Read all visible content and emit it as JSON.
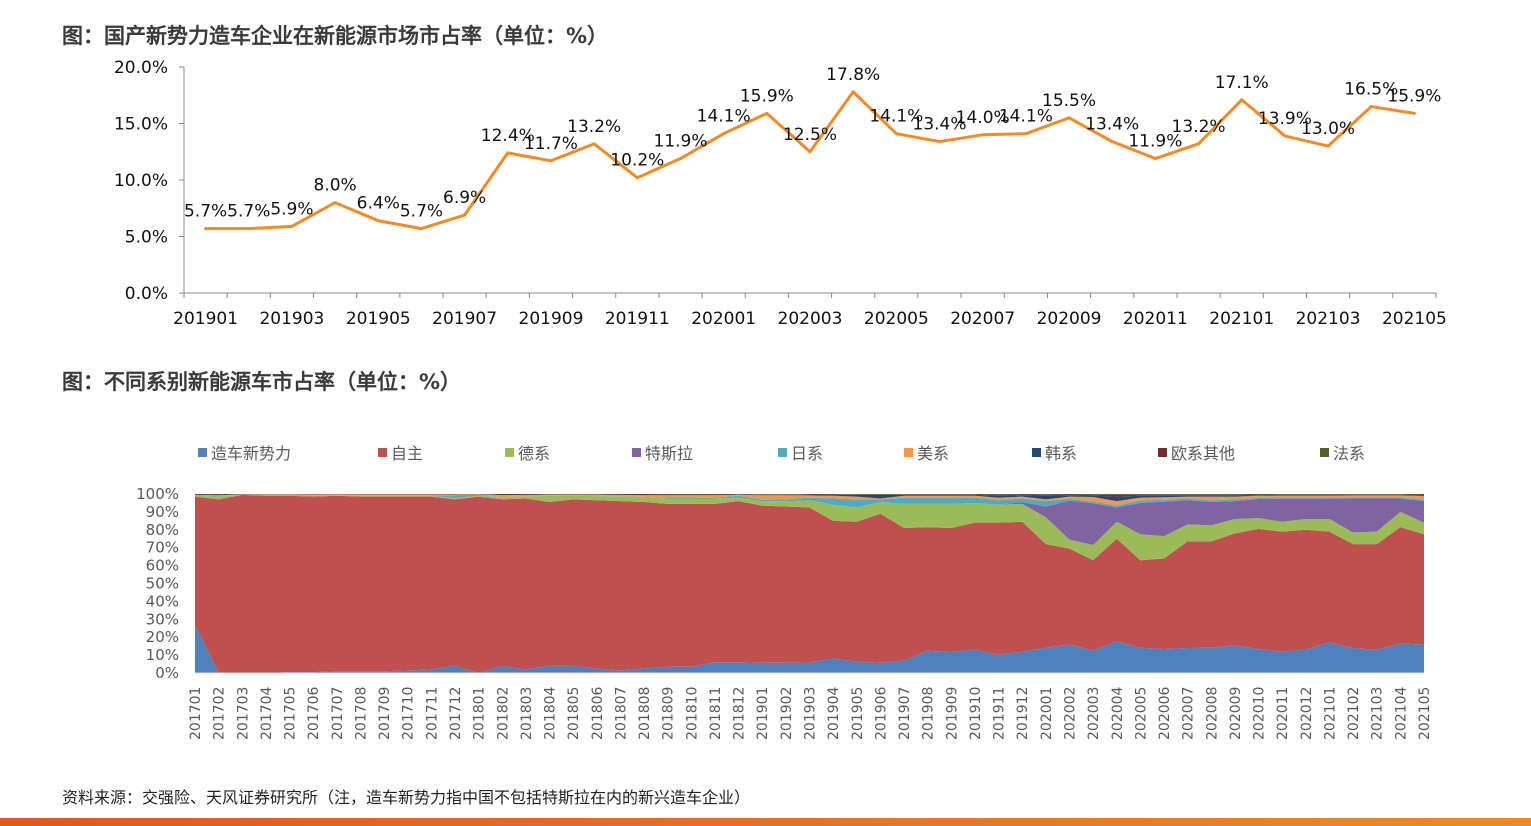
{
  "chart_data": [
    {
      "type": "line",
      "title": "图：国产新势力造车企业在新能源市场市占率（单位：%）",
      "x": [
        "201901",
        "201902",
        "201903",
        "201904",
        "201905",
        "201906",
        "201907",
        "201908",
        "201909",
        "201910",
        "201911",
        "201912",
        "202001",
        "202002",
        "202003",
        "202004",
        "202005",
        "202006",
        "202007",
        "202008",
        "202009",
        "202010",
        "202011",
        "202012",
        "202101",
        "202102",
        "202103",
        "202104",
        "202105"
      ],
      "x_tick_labels": [
        "201901",
        "201903",
        "201905",
        "201907",
        "201909",
        "201911",
        "202001",
        "202003",
        "202005",
        "202007",
        "202009",
        "202011",
        "202101",
        "202103",
        "202105"
      ],
      "values": [
        5.7,
        5.7,
        5.9,
        8.0,
        6.4,
        5.7,
        6.9,
        12.4,
        11.7,
        13.2,
        10.2,
        11.9,
        14.1,
        15.9,
        12.5,
        17.8,
        14.1,
        13.4,
        14.0,
        14.1,
        15.5,
        13.4,
        11.9,
        13.2,
        17.1,
        13.9,
        13.0,
        16.5,
        15.9
      ],
      "data_labels": [
        "5.7%",
        "5.7%",
        "5.9%",
        "8.0%",
        "6.4%",
        "5.7%",
        "6.9%",
        "12.4%",
        "11.7%",
        "13.2%",
        "10.2%",
        "11.9%",
        "14.1%",
        "15.9%",
        "12.5%",
        "17.8%",
        "14.1%",
        "13.4%",
        "14.0%",
        "14.1%",
        "15.5%",
        "13.4%",
        "11.9%",
        "13.2%",
        "17.1%",
        "13.9%",
        "13.0%",
        "16.5%",
        "15.9%"
      ],
      "y_tick_labels": [
        "0.0%",
        "5.0%",
        "10.0%",
        "15.0%",
        "20.0%"
      ],
      "ylim": [
        0,
        20
      ],
      "grid": false,
      "color": "#F58A23"
    },
    {
      "type": "area",
      "stacked": "percent",
      "title": "图：不同系别新能源车市占率（单位：%）",
      "x": [
        "201701",
        "201702",
        "201703",
        "201704",
        "201705",
        "201706",
        "201707",
        "201708",
        "201709",
        "201710",
        "201711",
        "201712",
        "201801",
        "201802",
        "201803",
        "201804",
        "201805",
        "201806",
        "201807",
        "201808",
        "201809",
        "201810",
        "201811",
        "201812",
        "201901",
        "201902",
        "201903",
        "201904",
        "201905",
        "201906",
        "201907",
        "201908",
        "201909",
        "201910",
        "201911",
        "201912",
        "202001",
        "202002",
        "202003",
        "202004",
        "202005",
        "202006",
        "202007",
        "202008",
        "202009",
        "202010",
        "202011",
        "202012",
        "202101",
        "202102",
        "202103",
        "202104",
        "202105"
      ],
      "y_tick_labels": [
        "0%",
        "10%",
        "20%",
        "30%",
        "40%",
        "50%",
        "60%",
        "70%",
        "80%",
        "90%",
        "100%"
      ],
      "ylim": [
        0,
        100
      ],
      "legend_position": "top",
      "series": [
        {
          "name": "造车新势力",
          "color": "#4F81BD",
          "values": [
            27,
            0,
            0,
            0,
            0.5,
            0.5,
            1,
            1,
            1,
            1.5,
            2,
            4,
            0,
            4,
            2,
            4,
            4,
            2.5,
            1.5,
            2.5,
            3.5,
            3.5,
            6,
            6,
            5.7,
            5.7,
            5.9,
            8.0,
            6.4,
            5.7,
            6.9,
            12.4,
            11.7,
            13.2,
            10.2,
            11.9,
            14.1,
            15.9,
            12.5,
            17.8,
            14.1,
            13.4,
            14.0,
            14.1,
            15.5,
            13.4,
            11.9,
            13.2,
            17.1,
            13.9,
            13.0,
            16.5,
            15.9
          ]
        },
        {
          "name": "自主",
          "color": "#C0504D",
          "values": [
            71.5,
            97,
            99.5,
            99,
            98.5,
            98,
            98,
            97.5,
            97.5,
            97,
            96.5,
            93,
            98.5,
            93,
            95.5,
            91.5,
            93,
            94,
            94.5,
            93,
            91,
            91,
            88.5,
            90,
            87.8,
            87.3,
            86.6,
            77,
            78.1,
            83.3,
            74.1,
            69.1,
            69.3,
            70.8,
            73.8,
            72.6,
            57.9,
            53.6,
            50.5,
            57.2,
            48.9,
            50.6,
            59.5,
            59.4,
            62.5,
            67.1,
            67.1,
            66.8,
            61.9,
            58.1,
            59,
            65,
            61.6
          ]
        },
        {
          "name": "德系",
          "color": "#9BBB59",
          "values": [
            0.5,
            1.5,
            0.2,
            0.5,
            0.5,
            0.5,
            0.3,
            0.5,
            0.5,
            0.5,
            0.5,
            0.8,
            0.5,
            1,
            1,
            3.5,
            2,
            2.3,
            2.5,
            2.7,
            3,
            3,
            3,
            2,
            2.5,
            3,
            4,
            9,
            8,
            6.5,
            13.5,
            13,
            13.5,
            11,
            10,
            10,
            15,
            5,
            8.5,
            9.5,
            14.5,
            12.5,
            9.5,
            9,
            8,
            6,
            5.5,
            6,
            7,
            6.5,
            7,
            8.5,
            6.5
          ]
        },
        {
          "name": "特斯拉",
          "color": "#8064A2",
          "values": [
            0,
            0,
            0,
            0,
            0,
            0,
            0,
            0,
            0,
            0,
            0,
            0,
            0,
            0,
            0,
            0,
            0,
            0,
            0,
            0,
            0,
            0,
            0,
            0,
            0,
            0,
            0,
            0,
            0,
            0,
            0,
            0,
            0,
            0,
            0,
            1,
            6,
            21.8,
            23.3,
            8,
            17.5,
            19.2,
            13.5,
            13,
            10,
            10.7,
            12.8,
            11.3,
            11.4,
            19,
            18.5,
            7.5,
            12
          ]
        },
        {
          "name": "日系",
          "color": "#4BACC6",
          "values": [
            0.2,
            0.3,
            0,
            0.1,
            0.1,
            0.2,
            0.1,
            0.2,
            0.2,
            0.2,
            0.2,
            1.5,
            0.5,
            0.2,
            0.2,
            0.1,
            0.1,
            0.2,
            0.2,
            0.2,
            0.3,
            0.3,
            0.5,
            1,
            0.8,
            1,
            1.5,
            3.5,
            4.5,
            1.5,
            3.5,
            3.5,
            3.5,
            3,
            2.5,
            2,
            3,
            1,
            1,
            1,
            1.5,
            1,
            1,
            1,
            1,
            0.8,
            0.8,
            0.8,
            0.7,
            0.7,
            0.7,
            0.6,
            1
          ]
        },
        {
          "name": "美系",
          "color": "#F79646",
          "values": [
            0.3,
            0.5,
            0.1,
            0.2,
            0.2,
            0.5,
            0.4,
            0.5,
            0.5,
            0.5,
            0.5,
            0.4,
            0.3,
            1.2,
            0.8,
            0.5,
            0.5,
            0.6,
            0.8,
            1,
            1.5,
            1.5,
            1.3,
            0.6,
            2.5,
            2.3,
            1.2,
            1.5,
            1.5,
            0.5,
            1,
            1,
            1,
            1,
            1.5,
            1,
            1,
            1.2,
            2.5,
            2.5,
            1.5,
            1.5,
            1,
            2,
            1.5,
            1,
            1,
            1,
            1,
            1,
            1,
            1.1,
            1.8
          ]
        },
        {
          "name": "韩系",
          "color": "#1F497D",
          "values": [
            0.2,
            0.3,
            0.1,
            0.1,
            0.1,
            0.1,
            0.1,
            0.1,
            0.1,
            0.1,
            0.1,
            0.1,
            0.1,
            0.3,
            0.2,
            0.2,
            0.2,
            0.2,
            0.2,
            0.3,
            0.3,
            0.3,
            0.3,
            0.2,
            0.3,
            0.3,
            0.5,
            0.7,
            1,
            2,
            0.5,
            0.5,
            0.5,
            0.5,
            1,
            0.8,
            2,
            0.8,
            0.8,
            2.5,
            1,
            0.8,
            0.5,
            0.5,
            0.5,
            0.4,
            0.4,
            0.4,
            0.4,
            0.3,
            0.3,
            0.3,
            0.5
          ]
        },
        {
          "name": "欧系其他",
          "color": "#772C2A",
          "values": [
            0.3,
            0.4,
            0.1,
            0.1,
            0.1,
            0.2,
            0.1,
            0.2,
            0.2,
            0.2,
            0.2,
            0.2,
            0.1,
            0.3,
            0.3,
            0.2,
            0.2,
            0.2,
            0.3,
            0.3,
            0.4,
            0.4,
            0.4,
            0.2,
            0.2,
            0.2,
            0.2,
            0.2,
            0.3,
            0.3,
            0.3,
            0.3,
            0.3,
            0.3,
            0.5,
            0.4,
            0.6,
            0.4,
            0.5,
            1,
            0.6,
            0.6,
            0.6,
            0.6,
            0.6,
            0.4,
            0.3,
            0.3,
            0.3,
            0.3,
            0.3,
            0.3,
            0.4
          ]
        },
        {
          "name": "法系",
          "color": "#4F6228",
          "values": [
            0,
            0,
            0,
            0,
            0,
            0,
            0,
            0,
            0,
            0,
            0,
            0,
            0,
            0,
            0,
            0,
            0,
            0,
            0,
            0,
            0,
            0,
            0,
            0,
            0.2,
            0.2,
            0.1,
            0.1,
            0.2,
            0.2,
            0.2,
            0.2,
            0.2,
            0.2,
            0.5,
            0.3,
            0.4,
            0.3,
            0.4,
            0.5,
            0.4,
            0.4,
            0.4,
            0.4,
            0.4,
            0.2,
            0.2,
            0.2,
            0.2,
            0.2,
            0.2,
            0.2,
            0.3
          ]
        }
      ]
    }
  ],
  "footer": {
    "source": "资料来源：交强险、天风证券研究所（注，造车新势力指中国不包括特斯拉在内的新兴造车企业）"
  }
}
